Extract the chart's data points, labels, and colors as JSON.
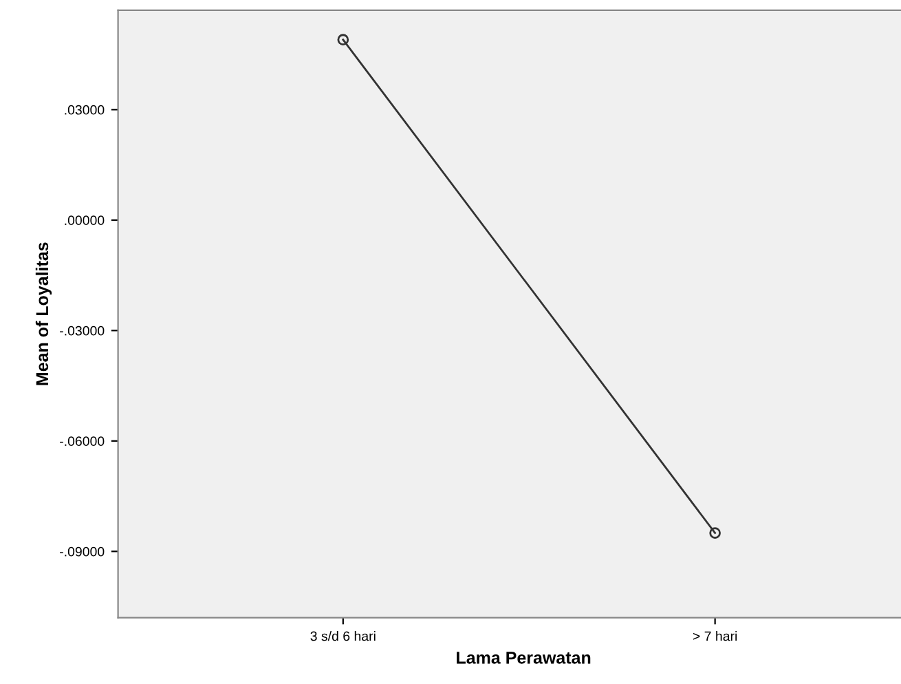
{
  "chart_data": {
    "type": "line",
    "xlabel": "Lama Perawatan",
    "ylabel": "Mean of Loyalitas",
    "categories": [
      "3 s/d 6 hari",
      "> 7 hari"
    ],
    "series": [
      {
        "color": "#333333",
        "values": [
          0.049,
          -0.085
        ]
      }
    ],
    "ylim": [
      -0.108,
      0.057
    ],
    "yticks": [
      {
        "value": 0.03,
        "label": ".03000"
      },
      {
        "value": 0,
        "label": ".00000"
      },
      {
        "value": -0.03,
        "label": "-.03000"
      },
      {
        "value": -0.06,
        "label": "-.06000"
      },
      {
        "value": -0.09,
        "label": "-.09000"
      }
    ],
    "marker": "circle",
    "line_style": "solid",
    "grid": false,
    "legend": false
  }
}
